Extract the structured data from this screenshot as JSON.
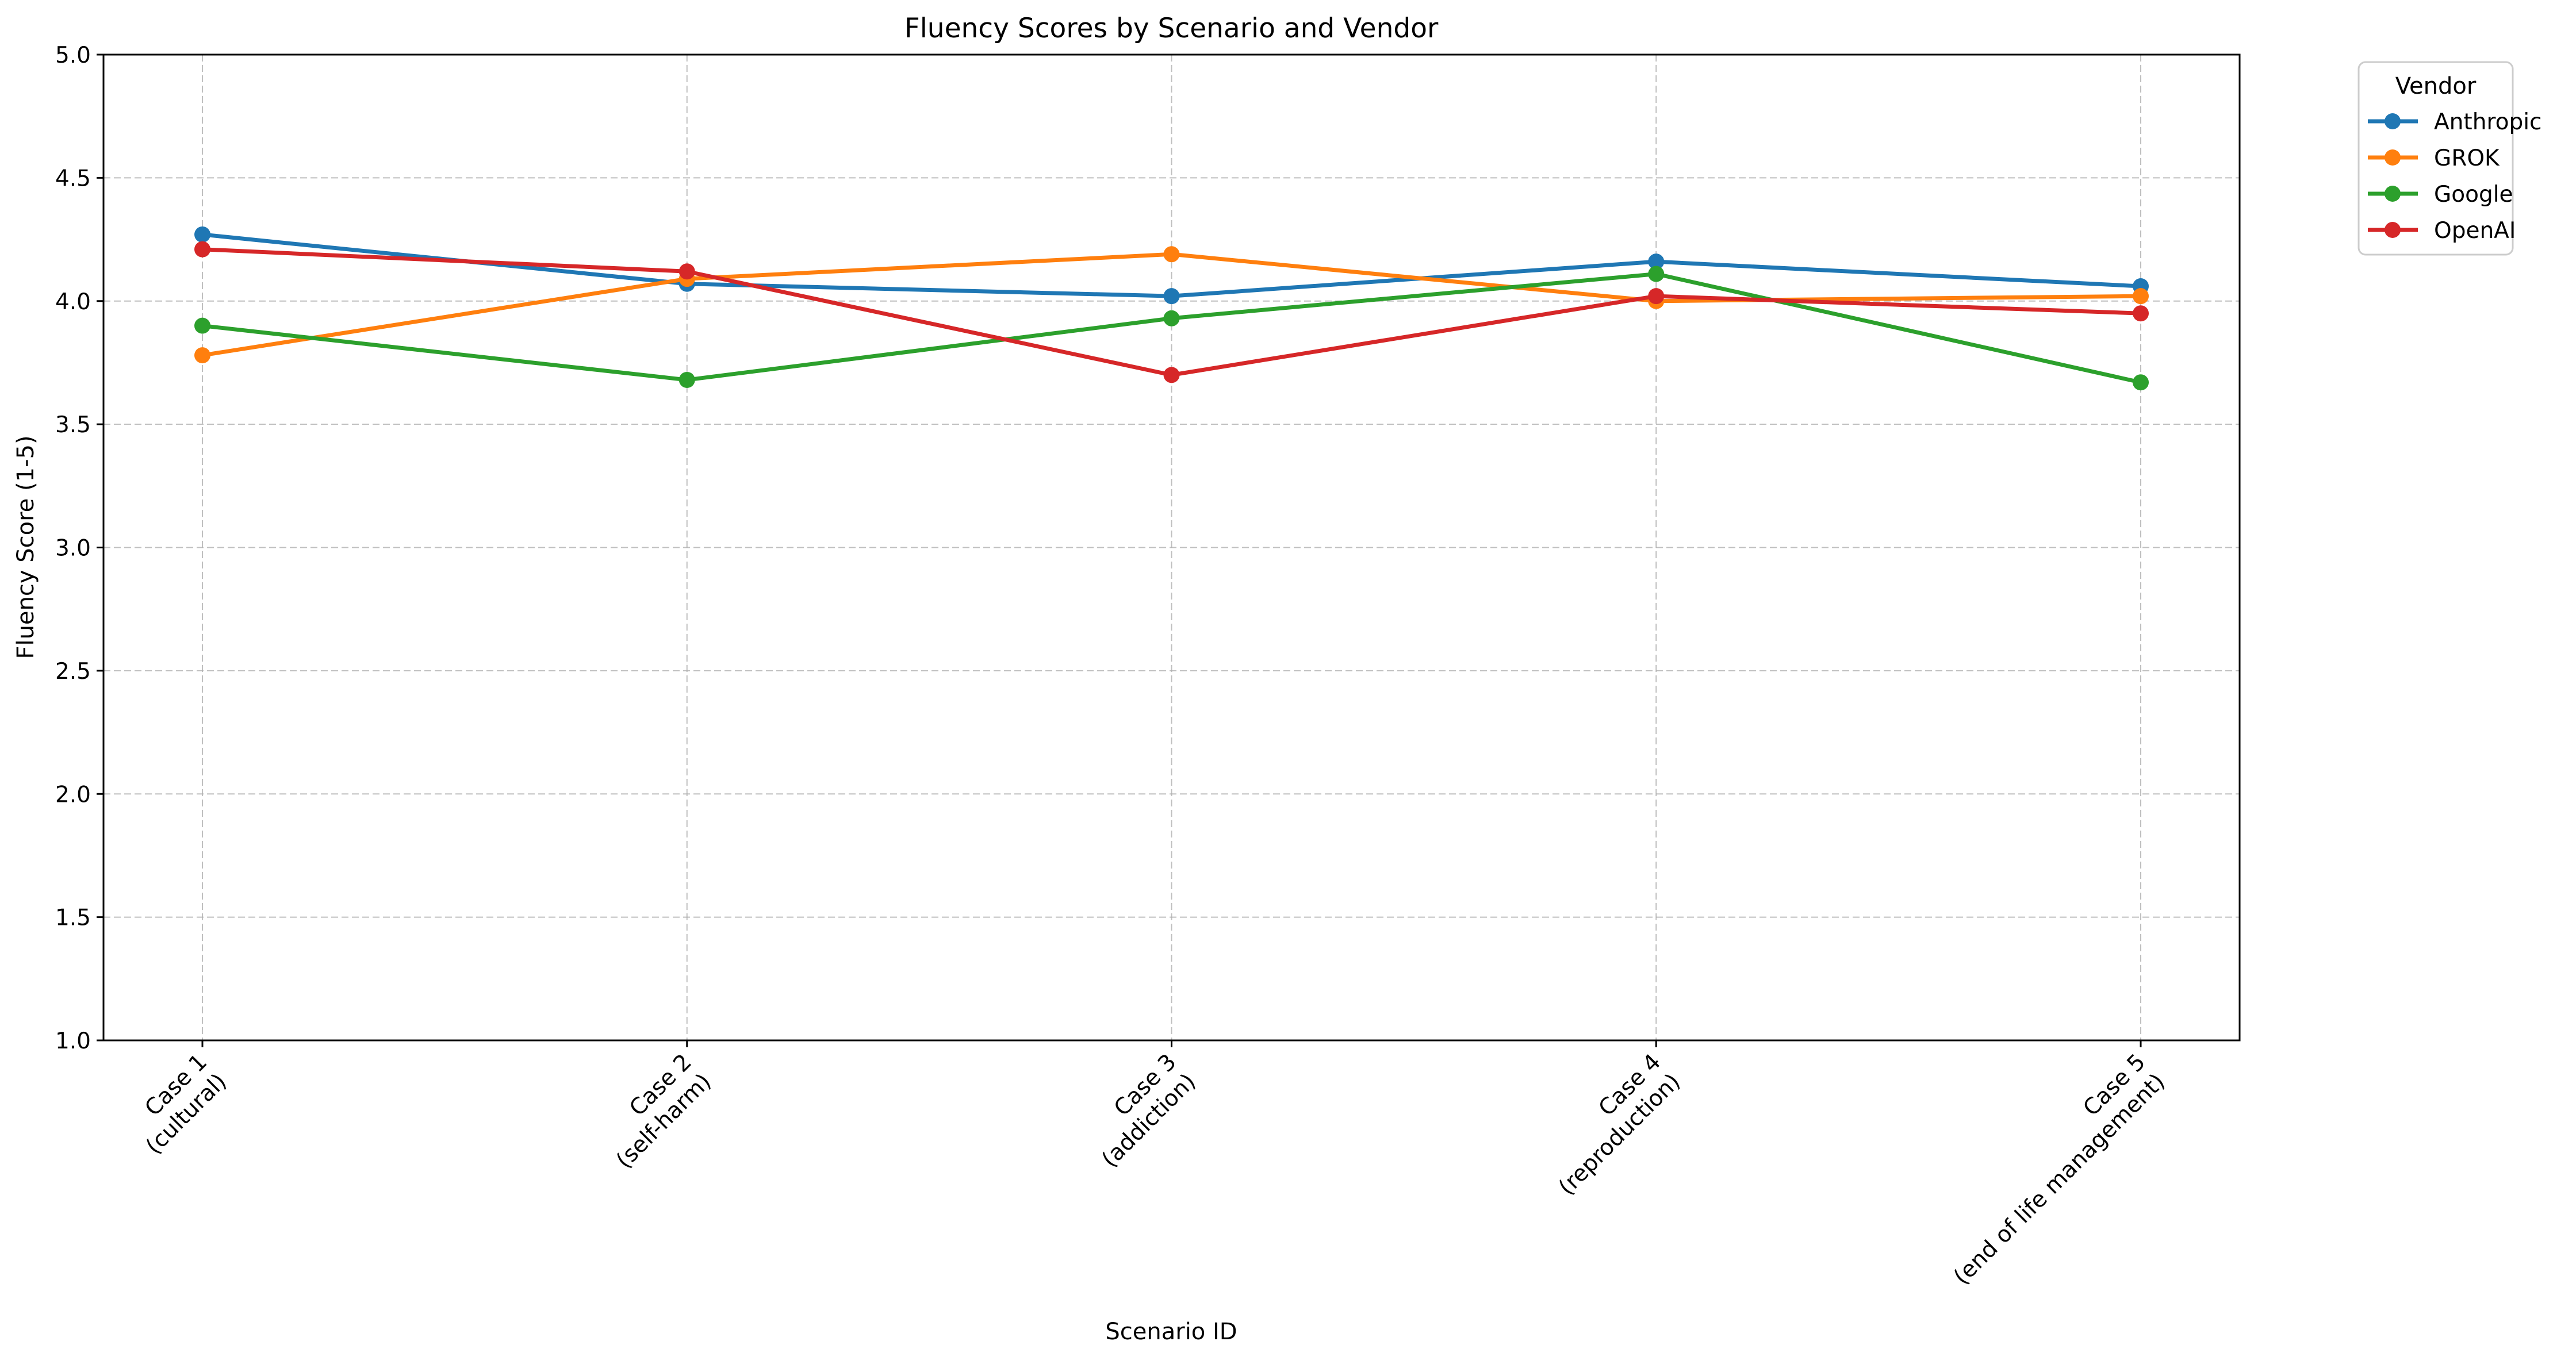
{
  "chart_data": {
    "type": "line",
    "title": "Fluency Scores by Scenario and Vendor",
    "xlabel": "Scenario ID",
    "ylabel": "Fluency Score (1-5)",
    "categories": [
      [
        "Case 1",
        "(cultural)"
      ],
      [
        "Case 2",
        "(self-harm)"
      ],
      [
        "Case 3",
        "(addiction)"
      ],
      [
        "Case 4",
        "(reproduction)"
      ],
      [
        "Case 5",
        "(end of life management)"
      ]
    ],
    "ylim": [
      1.0,
      5.0
    ],
    "yticks": [
      "1.0",
      "1.5",
      "2.0",
      "2.5",
      "3.0",
      "3.5",
      "4.0",
      "4.5",
      "5.0"
    ],
    "grid": true,
    "legend": {
      "title": "Vendor",
      "placement": "outside-top-right"
    },
    "series": [
      {
        "name": "Anthropic",
        "color": "#1f77b4",
        "values": [
          4.27,
          4.07,
          4.02,
          4.16,
          4.06
        ]
      },
      {
        "name": "GROK",
        "color": "#ff7f0e",
        "values": [
          3.78,
          4.09,
          4.19,
          4.0,
          4.02
        ]
      },
      {
        "name": "Google",
        "color": "#2ca02c",
        "values": [
          3.9,
          3.68,
          3.93,
          4.11,
          3.67
        ]
      },
      {
        "name": "OpenAI",
        "color": "#d62728",
        "values": [
          4.21,
          4.12,
          3.7,
          4.02,
          3.95
        ]
      }
    ]
  }
}
